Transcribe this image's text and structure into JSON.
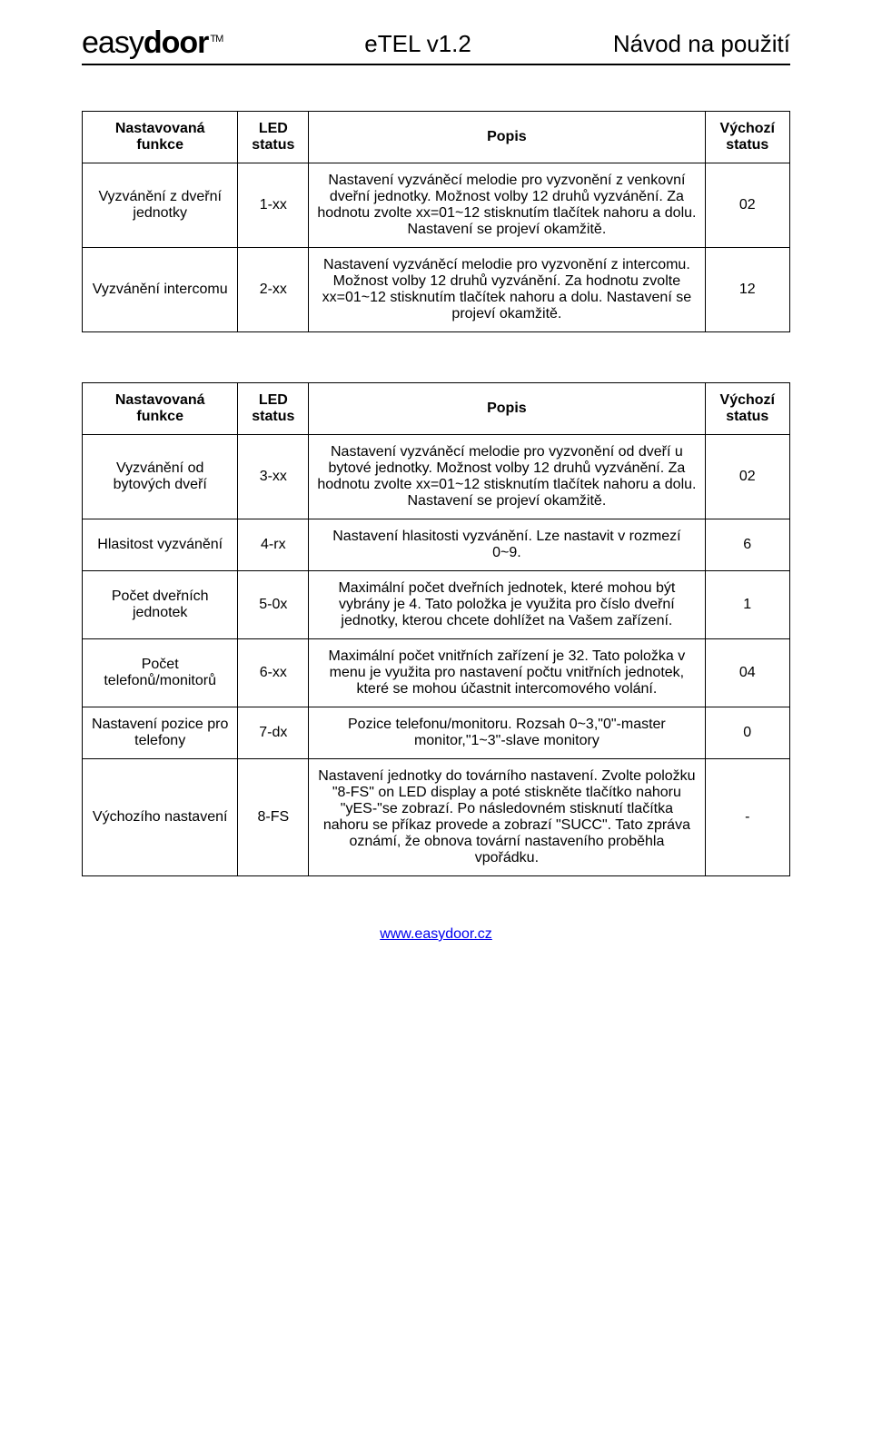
{
  "header": {
    "logo_part1": "e",
    "logo_part2": "asy",
    "logo_part3": "door",
    "logo_tm": "TM",
    "center": "eTEL v1.2",
    "right": "Návod na použití"
  },
  "table1": {
    "headers": [
      "Nastavovaná funkce",
      "LED status",
      "Popis",
      "Výchozí status"
    ],
    "rows": [
      {
        "func": "Vyzvánění z dveřní jednotky",
        "led": "1-xx",
        "desc": "Nastavení vyzváněcí melodie pro vyzvonění z venkovní dveřní jednotky. Možnost volby 12 druhů vyzvánění. Za hodnotu zvolte xx=01~12 stisknutím  tlačítek nahoru a dolu. Nastavení se projeví okamžitě.",
        "def": "02"
      },
      {
        "func": "Vyzvánění intercomu",
        "led": "2-xx",
        "desc": "Nastavení vyzváněcí melodie pro vyzvonění z intercomu. Možnost volby 12 druhů vyzvánění. Za hodnotu zvolte xx=01~12 stisknutím  tlačítek nahoru a dolu. Nastavení se projeví okamžitě.",
        "def": "12"
      }
    ]
  },
  "table2": {
    "headers": [
      "Nastavovaná funkce",
      "LED status",
      "Popis",
      "Výchozí status"
    ],
    "rows": [
      {
        "func": "Vyzvánění od bytových dveří",
        "led": "3-xx",
        "desc": "Nastavení vyzváněcí melodie pro vyzvonění od  dveří u bytové jednotky. Možnost volby 12 druhů vyzvánění. Za hodnotu zvolte xx=01~12 stisknutím  tlačítek nahoru a dolu. Nastavení se projeví okamžitě.",
        "def": "02"
      },
      {
        "func": "Hlasitost vyzvánění",
        "led": "4-rx",
        "desc": "Nastavení hlasitosti vyzvánění. Lze nastavit v rozmezí 0~9.",
        "def": "6"
      },
      {
        "func": "Počet dveřních jednotek",
        "led": "5-0x",
        "desc": "Maximální počet dveřních jednotek, které mohou být vybrány je 4. Tato položka je využita pro číslo dveřní jednotky, kterou chcete dohlížet na Vašem zařízení.",
        "def": "1"
      },
      {
        "func": "Počet telefonů/monitorů",
        "led": "6-xx",
        "desc": "Maximální počet vnitřních zařízení je 32. Tato položka v menu je využita pro nastavení počtu vnitřních jednotek, které se mohou účastnit intercomového volání.",
        "def": "04"
      },
      {
        "func": "Nastavení pozice pro telefony",
        "led": "7-dx",
        "desc": "Pozice telefonu/monitoru. Rozsah 0~3,\"0\"-master monitor,\"1~3\"-slave monitory",
        "def": "0"
      },
      {
        "func": "Výchozího nastavení",
        "led": "8-FS",
        "desc": "Nastavení jednotky do továrního nastavení. Zvolte položku \"8-FS\" on LED display a poté stiskněte tlačítko nahoru \"yES-\"se zobrazí. Po následovném stisknutí tlačítka nahoru se příkaz provede a zobrazí \"SUCC\". Tato zpráva oznámí, že obnova tovární nastaveního proběhla vpořádku.",
        "def": "-"
      }
    ]
  },
  "footer": {
    "link_text": "www.easydoor.cz",
    "link_href": "#"
  }
}
